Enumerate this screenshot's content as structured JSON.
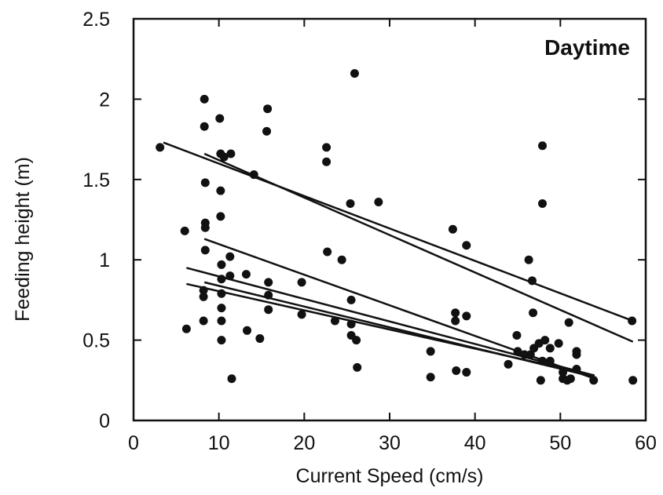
{
  "chart_data": {
    "type": "scatter",
    "title": "",
    "annotation": "Daytime",
    "xlabel": "Current Speed (cm/s)",
    "ylabel": "Feeding height (m)",
    "xlim": [
      0,
      60
    ],
    "ylim": [
      0,
      2.5
    ],
    "xticks": [
      "0",
      "10",
      "20",
      "30",
      "40",
      "50",
      "60"
    ],
    "yticks": [
      "0",
      "0.5",
      "1",
      "1.5",
      "2",
      "2.5"
    ],
    "grid": false,
    "legend": "none",
    "points": [
      {
        "x": 3.1,
        "y": 1.7
      },
      {
        "x": 6.0,
        "y": 1.18
      },
      {
        "x": 6.2,
        "y": 0.57
      },
      {
        "x": 8.3,
        "y": 2.0
      },
      {
        "x": 8.3,
        "y": 1.83
      },
      {
        "x": 8.4,
        "y": 1.48
      },
      {
        "x": 8.4,
        "y": 1.23
      },
      {
        "x": 8.4,
        "y": 1.2
      },
      {
        "x": 8.4,
        "y": 1.06
      },
      {
        "x": 8.2,
        "y": 0.81
      },
      {
        "x": 8.2,
        "y": 0.77
      },
      {
        "x": 8.2,
        "y": 0.62
      },
      {
        "x": 10.1,
        "y": 1.88
      },
      {
        "x": 10.2,
        "y": 1.66
      },
      {
        "x": 10.6,
        "y": 1.64
      },
      {
        "x": 11.4,
        "y": 1.66
      },
      {
        "x": 10.2,
        "y": 1.43
      },
      {
        "x": 10.2,
        "y": 1.27
      },
      {
        "x": 10.3,
        "y": 0.97
      },
      {
        "x": 10.3,
        "y": 0.88
      },
      {
        "x": 10.3,
        "y": 0.79
      },
      {
        "x": 10.3,
        "y": 0.7
      },
      {
        "x": 10.3,
        "y": 0.62
      },
      {
        "x": 10.3,
        "y": 0.5
      },
      {
        "x": 11.3,
        "y": 1.02
      },
      {
        "x": 11.3,
        "y": 0.9
      },
      {
        "x": 11.5,
        "y": 0.26
      },
      {
        "x": 13.2,
        "y": 0.91
      },
      {
        "x": 13.3,
        "y": 0.56
      },
      {
        "x": 14.1,
        "y": 1.53
      },
      {
        "x": 14.8,
        "y": 0.51
      },
      {
        "x": 15.7,
        "y": 1.94
      },
      {
        "x": 15.6,
        "y": 1.8
      },
      {
        "x": 15.8,
        "y": 0.86
      },
      {
        "x": 15.8,
        "y": 0.78
      },
      {
        "x": 15.8,
        "y": 0.69
      },
      {
        "x": 19.7,
        "y": 0.86
      },
      {
        "x": 19.7,
        "y": 0.66
      },
      {
        "x": 22.6,
        "y": 1.7
      },
      {
        "x": 22.6,
        "y": 1.61
      },
      {
        "x": 22.7,
        "y": 1.05
      },
      {
        "x": 23.6,
        "y": 0.62
      },
      {
        "x": 24.4,
        "y": 1.0
      },
      {
        "x": 25.4,
        "y": 1.35
      },
      {
        "x": 25.5,
        "y": 0.75
      },
      {
        "x": 25.5,
        "y": 0.6
      },
      {
        "x": 25.5,
        "y": 0.53
      },
      {
        "x": 25.9,
        "y": 2.16
      },
      {
        "x": 26.1,
        "y": 0.5
      },
      {
        "x": 26.2,
        "y": 0.33
      },
      {
        "x": 28.7,
        "y": 1.36
      },
      {
        "x": 34.8,
        "y": 0.43
      },
      {
        "x": 34.8,
        "y": 0.27
      },
      {
        "x": 37.4,
        "y": 1.19
      },
      {
        "x": 37.7,
        "y": 0.67
      },
      {
        "x": 37.7,
        "y": 0.62
      },
      {
        "x": 37.8,
        "y": 0.31
      },
      {
        "x": 39.0,
        "y": 1.09
      },
      {
        "x": 39.0,
        "y": 0.65
      },
      {
        "x": 39.0,
        "y": 0.3
      },
      {
        "x": 43.9,
        "y": 0.35
      },
      {
        "x": 44.9,
        "y": 0.53
      },
      {
        "x": 45.0,
        "y": 0.43
      },
      {
        "x": 45.8,
        "y": 0.41
      },
      {
        "x": 46.3,
        "y": 1.0
      },
      {
        "x": 46.5,
        "y": 0.41
      },
      {
        "x": 46.7,
        "y": 0.87
      },
      {
        "x": 46.8,
        "y": 0.67
      },
      {
        "x": 46.9,
        "y": 0.45
      },
      {
        "x": 47.5,
        "y": 0.48
      },
      {
        "x": 47.7,
        "y": 0.25
      },
      {
        "x": 47.9,
        "y": 1.71
      },
      {
        "x": 47.9,
        "y": 1.35
      },
      {
        "x": 47.9,
        "y": 0.37
      },
      {
        "x": 48.2,
        "y": 0.5
      },
      {
        "x": 48.8,
        "y": 0.45
      },
      {
        "x": 48.8,
        "y": 0.37
      },
      {
        "x": 49.8,
        "y": 0.48
      },
      {
        "x": 50.3,
        "y": 0.3
      },
      {
        "x": 50.3,
        "y": 0.26
      },
      {
        "x": 50.8,
        "y": 0.25
      },
      {
        "x": 51.0,
        "y": 0.61
      },
      {
        "x": 51.2,
        "y": 0.26
      },
      {
        "x": 51.9,
        "y": 0.43
      },
      {
        "x": 51.9,
        "y": 0.41
      },
      {
        "x": 51.9,
        "y": 0.32
      },
      {
        "x": 53.9,
        "y": 0.25
      },
      {
        "x": 58.4,
        "y": 0.62
      },
      {
        "x": 58.5,
        "y": 0.25
      }
    ],
    "regression_lines": [
      {
        "x": [
          3.5,
          58.5
        ],
        "y": [
          1.73,
          0.62
        ]
      },
      {
        "x": [
          8.3,
          58.5
        ],
        "y": [
          1.66,
          0.49
        ]
      },
      {
        "x": [
          8.3,
          54.0
        ],
        "y": [
          1.13,
          0.26
        ]
      },
      {
        "x": [
          6.2,
          54.0
        ],
        "y": [
          0.95,
          0.28
        ]
      },
      {
        "x": [
          8.3,
          54.0
        ],
        "y": [
          0.86,
          0.27
        ]
      },
      {
        "x": [
          6.2,
          54.0
        ],
        "y": [
          0.85,
          0.28
        ]
      }
    ]
  }
}
